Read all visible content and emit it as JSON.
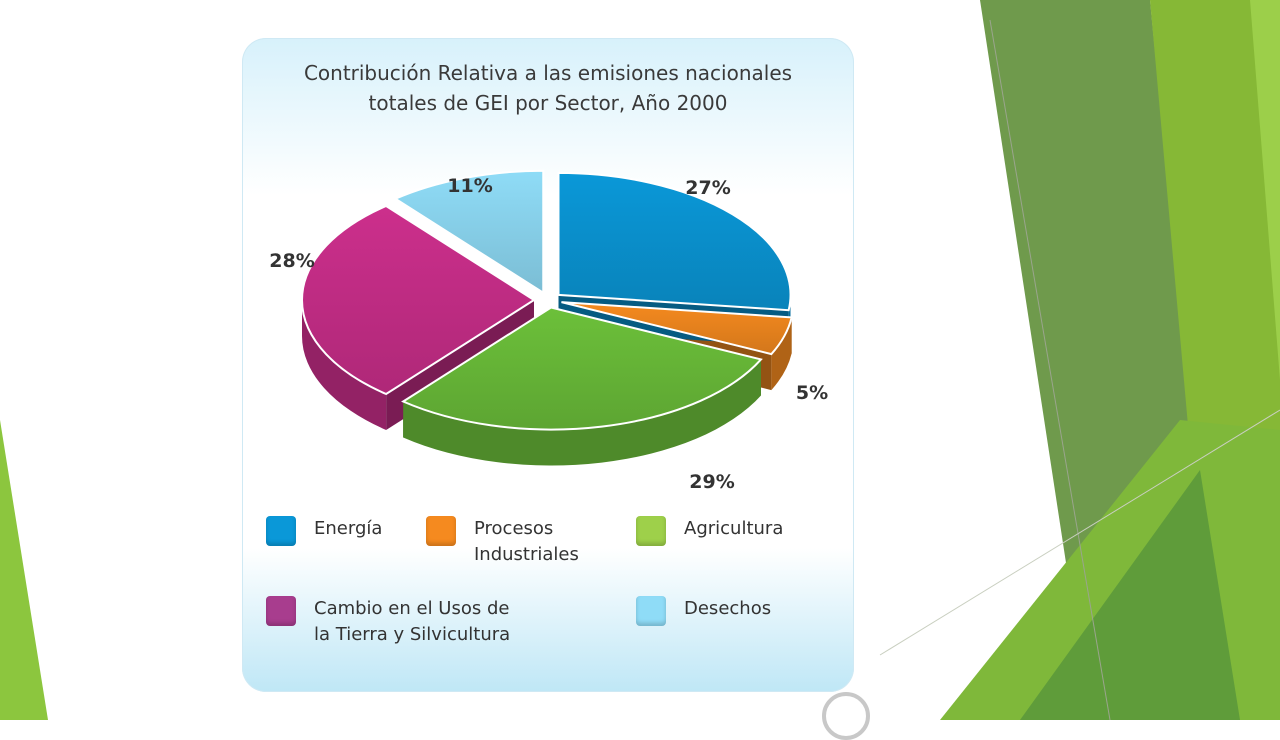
{
  "colors": {
    "energia": "#0a98d8",
    "procesos": "#f58a1f",
    "agricultura": "#6cc03a",
    "cambio_uso": "#cc2f8c",
    "desechos": "#8fdcf7",
    "decor_dark": "#6f9a4c",
    "decor_mid": "#85b835",
    "decor_light": "#cfe6a6"
  },
  "chart_data": {
    "type": "pie",
    "title": "Contribución Relativa a las emisiones nacionales\ntotales de GEI por Sector, Año 2000",
    "categories": [
      "Energía",
      "Procesos Industriales",
      "Agricultura",
      "Cambio en el Usos de la Tierra y Silvicultura",
      "Desechos"
    ],
    "values": [
      27,
      5,
      29,
      28,
      11
    ],
    "data_labels": [
      "27%",
      "5%",
      "29%",
      "28%",
      "11%"
    ],
    "legend": [
      {
        "label": "Energía",
        "color": "#0a98d8"
      },
      {
        "label": "Procesos\nIndustriales",
        "color": "#f58a1f"
      },
      {
        "label": "Agricultura",
        "color": "#9ed04a"
      },
      {
        "label": "Cambio en el Usos de\nla Tierra y Silvicultura",
        "color": "#a83d8e"
      },
      {
        "label": "Desechos",
        "color": "#8fdcf7"
      }
    ],
    "legend_position": "bottom",
    "exploded": true,
    "three_d": true
  }
}
